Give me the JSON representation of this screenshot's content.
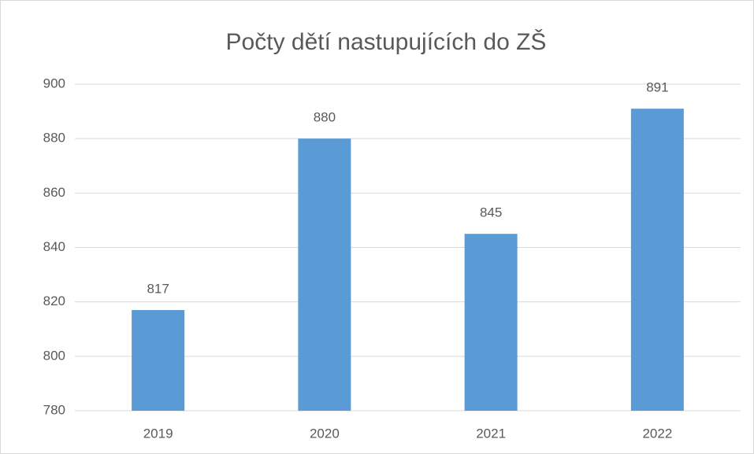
{
  "chart_data": {
    "type": "bar",
    "title": "Počty dětí nastupujících do ZŠ",
    "categories": [
      "2019",
      "2020",
      "2021",
      "2022"
    ],
    "values": [
      817,
      880,
      845,
      891
    ],
    "color": "#5b9bd5",
    "ylim": [
      780,
      900
    ],
    "yticks": [
      780,
      800,
      820,
      840,
      860,
      880,
      900
    ],
    "grid": true
  }
}
